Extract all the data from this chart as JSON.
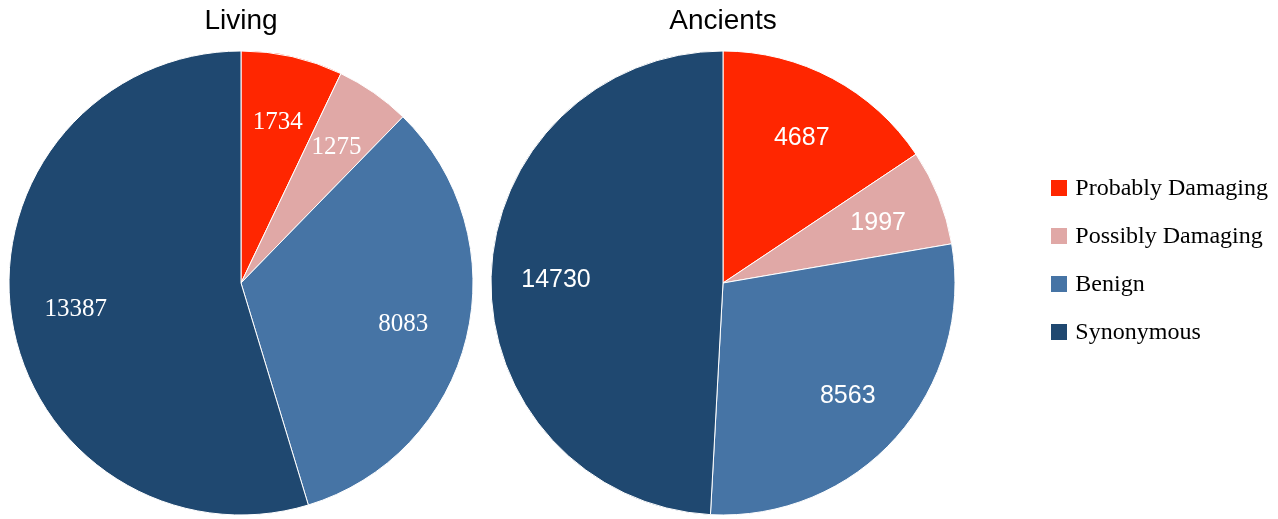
{
  "chart_data": [
    {
      "type": "pie",
      "title": "Living",
      "categories": [
        null,
        null,
        null,
        null
      ],
      "values": [
        1734,
        1275,
        8083,
        13387
      ],
      "colors": [
        "#ff2600",
        "#e0a8a6",
        "#4674a5",
        "#1f4870"
      ],
      "data_labels": true,
      "legend": false
    },
    {
      "type": "pie",
      "title": "Ancients",
      "categories": [
        "Probably Damaging",
        "Possibly Damaging",
        "Benign",
        "Synonymous"
      ],
      "values": [
        4687,
        1997,
        8563,
        14730
      ],
      "colors": [
        "#ff2600",
        "#e0a8a6",
        "#4674a5",
        "#1f4870"
      ],
      "data_labels": true,
      "legend": "right"
    }
  ]
}
